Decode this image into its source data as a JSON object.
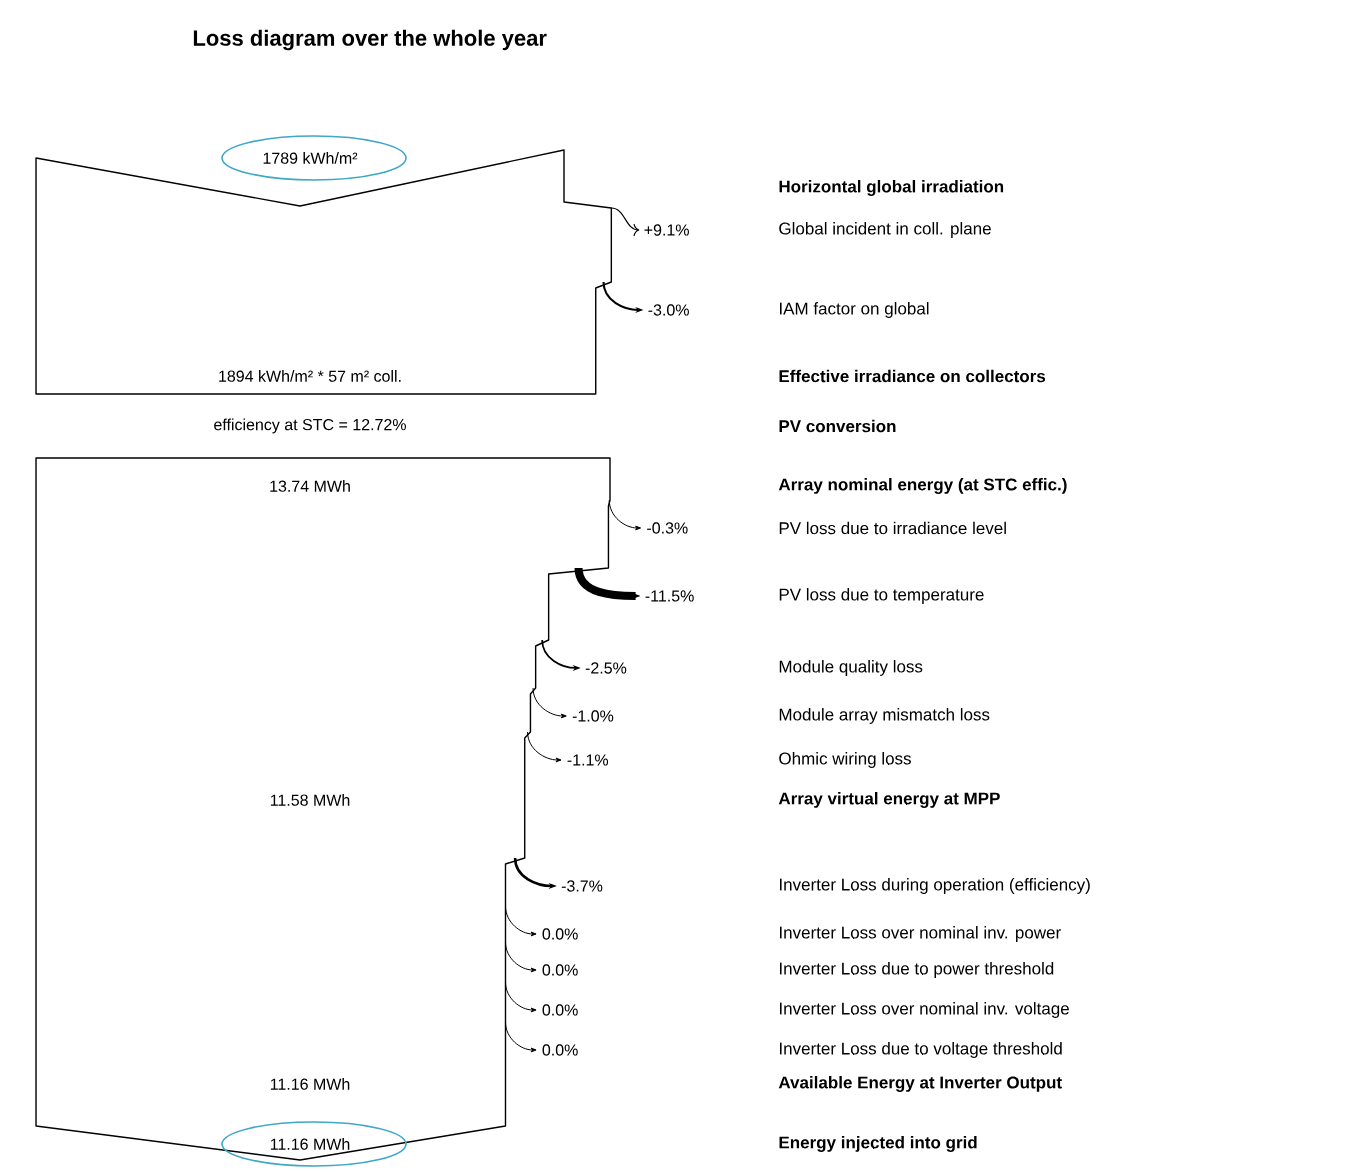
{
  "chart_data": {
    "type": "other",
    "title": "Loss diagram over the whole year",
    "categories": [
      "Horizontal global irradiation",
      "Global incident in coll. plane",
      "IAM factor on global",
      "Effective irradiance on collectors",
      "PV conversion",
      "Array nominal energy (at STC effic.)",
      "PV loss due to irradiance level",
      "PV loss due to temperature",
      "Module quality loss",
      "Module array mismatch loss",
      "Ohmic wiring loss",
      "Array virtual energy at MPP",
      "Inverter Loss during operation (efficiency)",
      "Inverter Loss over nominal inv. power",
      "Inverter Loss due to power threshold",
      "Inverter Loss over nominal inv. voltage",
      "Inverter Loss due to voltage threshold",
      "Available Energy at Inverter Output",
      "Energy injected into grid"
    ],
    "values": [
      null,
      9.1,
      -3.0,
      null,
      null,
      null,
      -0.3,
      -11.5,
      -2.5,
      -1.0,
      -1.1,
      null,
      -3.7,
      0.0,
      0.0,
      0.0,
      0.0,
      null,
      null
    ],
    "value_labels": [
      null,
      "+9.1%",
      "-3.0%",
      null,
      null,
      null,
      "-0.3%",
      "-11.5%",
      "-2.5%",
      "-1.0%",
      "-1.1%",
      null,
      "-3.7%",
      "0.0%",
      "0.0%",
      "0.0%",
      "0.0%",
      null,
      null
    ],
    "annotations": [
      "1789 kWh/m²",
      "1894 kWh/m² * 57 m² coll.",
      "efficiency at STC = 12.72%",
      "13.74 MWh",
      "11.58 MWh",
      "11.16 MWh",
      "11.16 MWh"
    ]
  }
}
